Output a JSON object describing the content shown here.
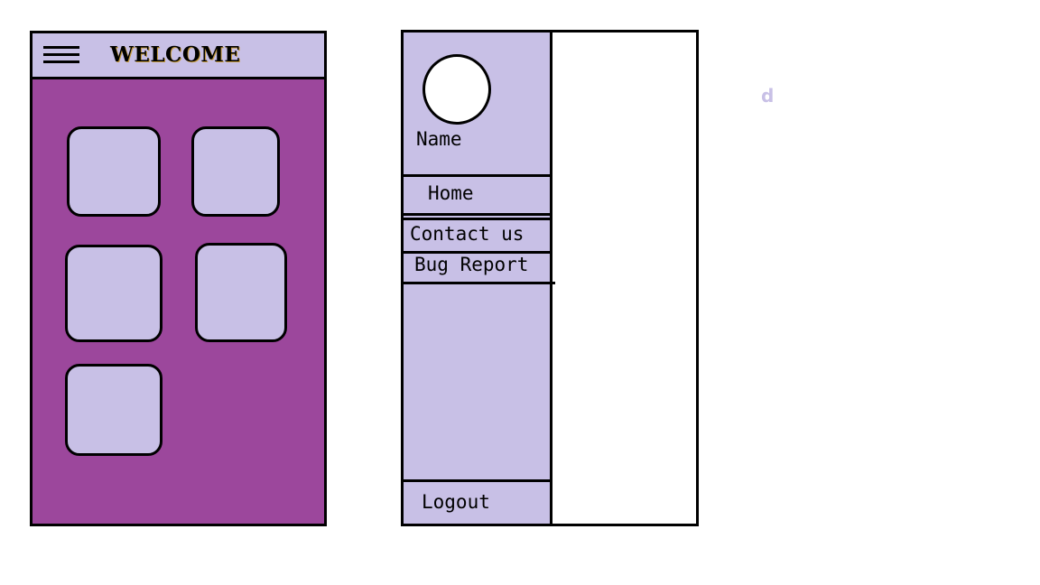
{
  "colors": {
    "accent_purple": "#9c479c",
    "light_lavender": "#c8c0e6",
    "outline": "#000000",
    "content_background": "#ffffff"
  },
  "home_screen": {
    "title": "WELCOME",
    "menu_icon": "hamburger-icon",
    "tile_count": 5
  },
  "drawer_screen": {
    "profile": {
      "avatar_icon": "avatar-circle",
      "name": "Name"
    },
    "menu_items": [
      {
        "label": "Home"
      },
      {
        "label": "Contact us"
      },
      {
        "label": "Bug Report"
      }
    ],
    "logout_label": "Logout"
  },
  "stray_text": "d"
}
